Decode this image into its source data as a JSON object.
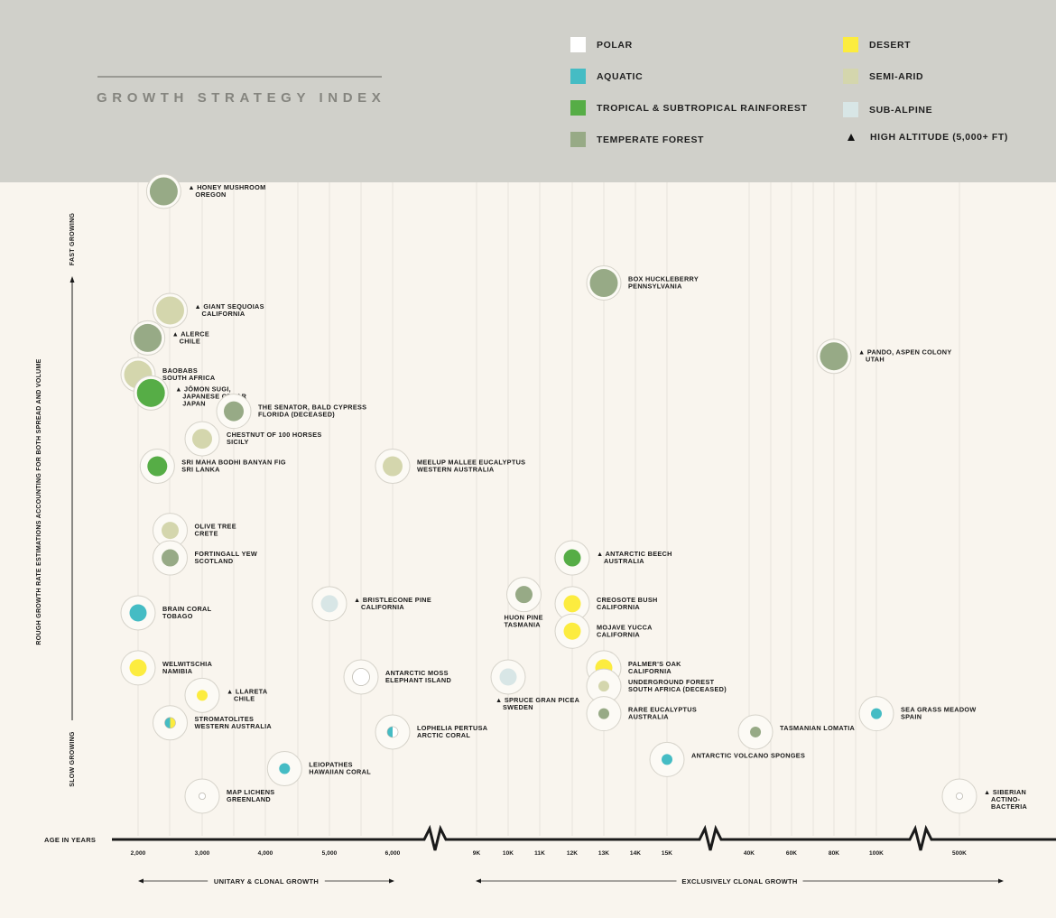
{
  "header": {
    "title": "GROWTH STRATEGY INDEX",
    "legend": [
      {
        "label": "POLAR",
        "color": "#ffffff",
        "icon": "polar-swatch"
      },
      {
        "label": "AQUATIC",
        "color": "#45bcc4",
        "icon": "aquatic-swatch"
      },
      {
        "label": "TROPICAL & SUBTROPICAL RAINFOREST",
        "color": "#56ad46",
        "icon": "tropical-rainforest-swatch"
      },
      {
        "label": "TEMPERATE FOREST",
        "color": "#97aa86",
        "icon": "temperate-forest-swatch"
      },
      {
        "label": "DESERT",
        "color": "#fcec3f",
        "icon": "desert-swatch"
      },
      {
        "label": "SEMI-ARID",
        "color": "#d4d6ad",
        "icon": "semi-arid-swatch"
      },
      {
        "label": "SUB-ALPINE",
        "color": "#d8e6e6",
        "icon": "sub-alpine-swatch"
      },
      {
        "label": "HIGH ALTITUDE (5,000+ FT)",
        "icon": "triangle-icon"
      }
    ]
  },
  "chart_data": {
    "type": "scatter",
    "title": "GROWTH STRATEGY INDEX",
    "xlabel": "AGE IN YEARS",
    "ylabel": "ROUGH GROWTH RATE ESTIMATIONS ACCOUNTING FOR BOTH SPREAD AND VOLUME",
    "y_top_label": "FAST GROWING",
    "y_bottom_label": "SLOW GROWING",
    "x_scale": "broken (segmented) axis",
    "x_ticks": [
      "2,000",
      "3,000",
      "4,000",
      "5,000",
      "6,000",
      "9K",
      "10K",
      "11K",
      "12K",
      "13K",
      "14K",
      "15K",
      "40K",
      "60K",
      "80K",
      "100K",
      "500K"
    ],
    "x_ranges": [
      {
        "label": "UNITARY & CLONAL GROWTH",
        "from": 2000,
        "to": 6000
      },
      {
        "label": "EXCLUSIVELY CLONAL GROWTH",
        "from": 9000,
        "to": 500000
      }
    ],
    "y_range": [
      "slow",
      "fast"
    ],
    "colors": {
      "POLAR": "#ffffff",
      "AQUATIC": "#45bcc4",
      "TROPICAL & SUBTROPICAL RAINFOREST": "#56ad46",
      "TEMPERATE FOREST": "#97aa86",
      "DESERT": "#fcec3f",
      "SEMI-ARID": "#d4d6ad",
      "SUB-ALPINE": "#d8e6e6"
    },
    "points": [
      {
        "name": "HONEY MUSHROOM",
        "place": "OREGON",
        "age": 2400,
        "growth": 0.9,
        "size": "large",
        "category": "TEMPERATE FOREST",
        "high_altitude": true
      },
      {
        "name": "BOX HUCKLEBERRY",
        "place": "PENNSYLVANIA",
        "age": 13000,
        "growth": 0.8,
        "size": "large",
        "category": "TEMPERATE FOREST",
        "high_altitude": false
      },
      {
        "name": "GIANT SEQUOIAS",
        "place": "CALIFORNIA",
        "age": 2500,
        "growth": 0.77,
        "size": "large",
        "category": "SEMI-ARID",
        "high_altitude": true
      },
      {
        "name": "ALERCE",
        "place": "CHILE",
        "age": 2150,
        "growth": 0.74,
        "size": "large",
        "category": "TEMPERATE FOREST",
        "high_altitude": true
      },
      {
        "name": "PANDO, ASPEN COLONY",
        "place": "UTAH",
        "age": 80000,
        "growth": 0.72,
        "size": "large",
        "category": "TEMPERATE FOREST",
        "high_altitude": true
      },
      {
        "name": "BAOBABS",
        "place": "SOUTH AFRICA",
        "age": 2000,
        "growth": 0.7,
        "size": "large",
        "category": "SEMI-ARID",
        "high_altitude": false
      },
      {
        "name": "JŌMON SUGI,",
        "place": "JAPANESE CEDAR JAPAN",
        "age": 2200,
        "growth": 0.68,
        "size": "large",
        "category": "TROPICAL & SUBTROPICAL RAINFOREST",
        "high_altitude": true
      },
      {
        "name": "THE SENATOR, BALD CYPRESS",
        "place": "FLORIDA (DECEASED)",
        "age": 3500,
        "growth": 0.66,
        "size": "medium",
        "category": "TEMPERATE FOREST",
        "high_altitude": false
      },
      {
        "name": "CHESTNUT OF 100 HORSES",
        "place": "SICILY",
        "age": 3000,
        "growth": 0.63,
        "size": "medium",
        "category": "SEMI-ARID",
        "high_altitude": false
      },
      {
        "name": "SRI MAHA BODHI BANYAN FIG",
        "place": "SRI LANKA",
        "age": 2300,
        "growth": 0.6,
        "size": "medium",
        "category": "TROPICAL & SUBTROPICAL RAINFOREST",
        "high_altitude": false
      },
      {
        "name": "MEELUP MALLEE EUCALYPTUS",
        "place": "WESTERN AUSTRALIA",
        "age": 6000,
        "growth": 0.6,
        "size": "medium",
        "category": "SEMI-ARID",
        "high_altitude": false
      },
      {
        "name": "OLIVE TREE",
        "place": "CRETE",
        "age": 2500,
        "growth": 0.53,
        "size": "small",
        "category": "SEMI-ARID",
        "high_altitude": false
      },
      {
        "name": "FORTINGALL YEW",
        "place": "SCOTLAND",
        "age": 2500,
        "growth": 0.5,
        "size": "small",
        "category": "TEMPERATE FOREST",
        "high_altitude": false
      },
      {
        "name": "ANTARCTIC BEECH",
        "place": "AUSTRALIA",
        "age": 12000,
        "growth": 0.5,
        "size": "small",
        "category": "TROPICAL & SUBTROPICAL RAINFOREST",
        "high_altitude": true
      },
      {
        "name": "HUON PINE",
        "place": "TASMANIA",
        "age": 10500,
        "growth": 0.46,
        "size": "small",
        "category": "TEMPERATE FOREST",
        "high_altitude": false
      },
      {
        "name": "BRISTLECONE PINE",
        "place": "CALIFORNIA",
        "age": 5000,
        "growth": 0.45,
        "size": "small",
        "category": "SUB-ALPINE",
        "high_altitude": true
      },
      {
        "name": "CREOSOTE BUSH",
        "place": "CALIFORNIA",
        "age": 12000,
        "growth": 0.45,
        "size": "small",
        "category": "DESERT",
        "high_altitude": false
      },
      {
        "name": "BRAIN CORAL",
        "place": "TOBAGO",
        "age": 2000,
        "growth": 0.44,
        "size": "small",
        "category": "AQUATIC",
        "high_altitude": false
      },
      {
        "name": "MOJAVE YUCCA",
        "place": "CALIFORNIA",
        "age": 12000,
        "growth": 0.42,
        "size": "small",
        "category": "DESERT",
        "high_altitude": false
      },
      {
        "name": "WELWITSCHIA",
        "place": "NAMIBIA",
        "age": 2000,
        "growth": 0.38,
        "size": "small",
        "category": "DESERT",
        "high_altitude": false
      },
      {
        "name": "PALMER'S OAK",
        "place": "CALIFORNIA",
        "age": 13000,
        "growth": 0.38,
        "size": "small",
        "category": "DESERT",
        "high_altitude": false
      },
      {
        "name": "ANTARCTIC MOSS",
        "place": "ELEPHANT ISLAND",
        "age": 5500,
        "growth": 0.37,
        "size": "small",
        "category": "POLAR",
        "high_altitude": false
      },
      {
        "name": "SPRUCE GRAN PICEA",
        "place": "SWEDEN",
        "age": 10000,
        "growth": 0.37,
        "size": "small",
        "category": "SUB-ALPINE",
        "high_altitude": true
      },
      {
        "name": "UNDERGROUND FOREST",
        "place": "SOUTH AFRICA (DECEASED)",
        "age": 13000,
        "growth": 0.36,
        "size": "tiny",
        "category": "SEMI-ARID",
        "high_altitude": false
      },
      {
        "name": "LLARETA",
        "place": "CHILE",
        "age": 3000,
        "growth": 0.35,
        "size": "tiny",
        "category": "DESERT",
        "high_altitude": true
      },
      {
        "name": "RARE EUCALYPTUS",
        "place": "AUSTRALIA",
        "age": 13000,
        "growth": 0.33,
        "size": "tiny",
        "category": "TEMPERATE FOREST",
        "high_altitude": false
      },
      {
        "name": "SEA GRASS MEADOW",
        "place": "SPAIN",
        "age": 100000,
        "growth": 0.33,
        "size": "tiny",
        "category": "AQUATIC",
        "high_altitude": false
      },
      {
        "name": "STROMATOLITES",
        "place": "WESTERN AUSTRALIA",
        "age": 2500,
        "growth": 0.32,
        "size": "tiny",
        "category": "AQUATIC / DESERT",
        "high_altitude": false
      },
      {
        "name": "TASMANIAN LOMATIA",
        "place": "",
        "age": 43000,
        "growth": 0.31,
        "size": "tiny",
        "category": "TEMPERATE FOREST",
        "high_altitude": false
      },
      {
        "name": "LOPHELIA PERTUSA",
        "place": "ARCTIC CORAL",
        "age": 6000,
        "growth": 0.31,
        "size": "tiny",
        "category": "AQUATIC / POLAR",
        "high_altitude": false
      },
      {
        "name": "ANTARCTIC VOLCANO SPONGES",
        "place": "",
        "age": 15000,
        "growth": 0.28,
        "size": "tiny",
        "category": "AQUATIC",
        "high_altitude": false
      },
      {
        "name": "LEIOPATHES",
        "place": "HAWAIIAN CORAL",
        "age": 4300,
        "growth": 0.27,
        "size": "tiny",
        "category": "AQUATIC",
        "high_altitude": false
      },
      {
        "name": "MAP LICHENS",
        "place": "GREENLAND",
        "age": 3000,
        "growth": 0.24,
        "size": "tiny",
        "category": "POLAR",
        "high_altitude": false
      },
      {
        "name": "SIBERIAN",
        "place": "ACTINO- BACTERIA",
        "age": 500000,
        "growth": 0.24,
        "size": "tiny",
        "category": "POLAR",
        "high_altitude": true
      }
    ]
  }
}
